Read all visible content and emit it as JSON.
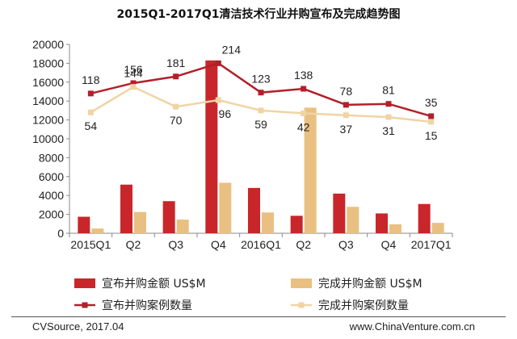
{
  "footer": {
    "source": "CVSource, 2017.04",
    "site": "www.ChinaVenture.com.cn"
  },
  "colors": {
    "announced": "#c8262a",
    "completed": "#e9c081",
    "announced_line": "#b2202a",
    "completed_line": "#f0d4a3"
  },
  "chart_data": {
    "type": "bar",
    "title": "2015Q1-2017Q1清洁技术行业并购宣布及完成趋势图",
    "categories": [
      "2015Q1",
      "Q2",
      "Q3",
      "Q4",
      "2016Q1",
      "Q2",
      "Q3",
      "Q4",
      "2017Q1"
    ],
    "ylim": [
      0,
      20000
    ],
    "yticks": [
      0,
      2000,
      4000,
      6000,
      8000,
      10000,
      12000,
      14000,
      16000,
      18000,
      20000
    ],
    "ytick_labels": [
      "0",
      "2000",
      "4000",
      "6000",
      "8000",
      "10000",
      "12000",
      "14000",
      "16000",
      "18000",
      "20000"
    ],
    "series": [
      {
        "name": "宣布并购金额 US$M",
        "kind": "bar",
        "values": [
          1750,
          5150,
          3400,
          18300,
          4800,
          1850,
          4200,
          2100,
          3100
        ]
      },
      {
        "name": "完成并购金额 US$M",
        "kind": "bar",
        "values": [
          500,
          2250,
          1450,
          5350,
          2200,
          13300,
          2800,
          950,
          1100
        ]
      },
      {
        "name": "宣布并购案例数量",
        "kind": "line",
        "values": [
          118,
          156,
          181,
          214,
          123,
          138,
          78,
          81,
          35
        ],
        "plot_y": [
          14800,
          15900,
          16600,
          18000,
          14900,
          15300,
          13600,
          13700,
          12400
        ]
      },
      {
        "name": "完成并购案例数量",
        "kind": "line",
        "values": [
          54,
          144,
          70,
          96,
          59,
          42,
          37,
          31,
          15
        ],
        "plot_y": [
          12800,
          15500,
          13400,
          14100,
          13000,
          12700,
          12500,
          12300,
          11800
        ]
      }
    ],
    "legend_position": "bottom",
    "grid": false
  }
}
